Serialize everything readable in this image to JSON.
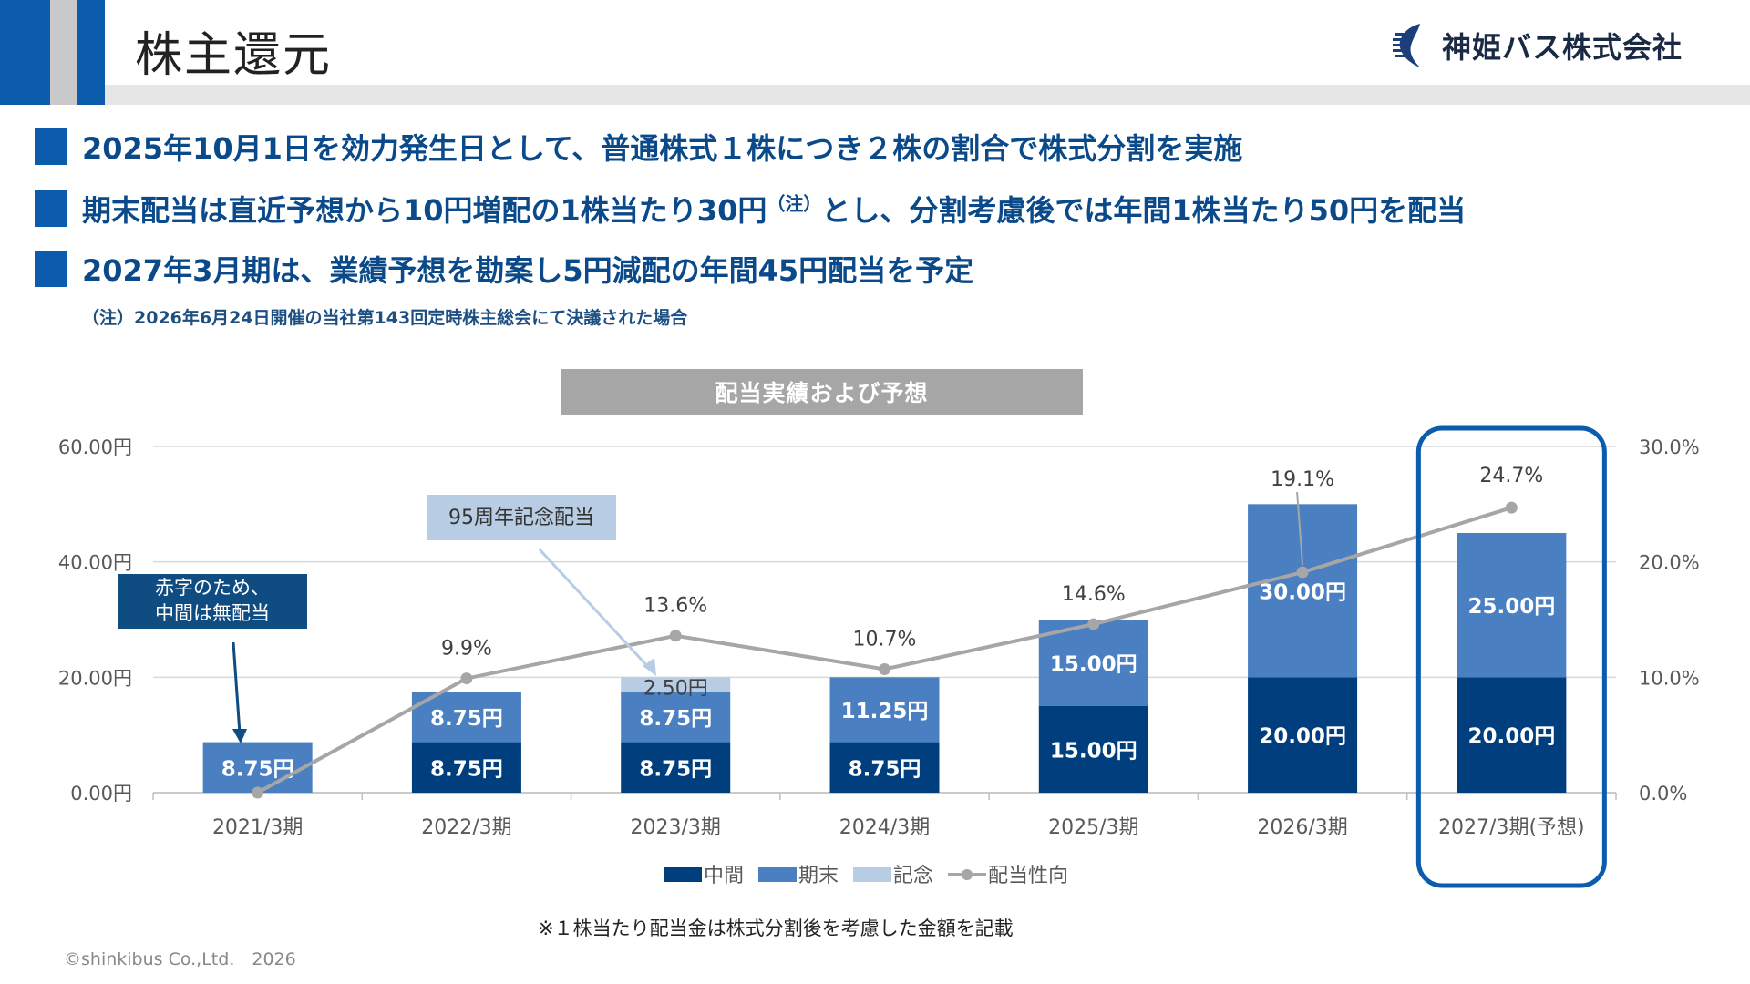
{
  "header": {
    "title": "株主還元",
    "company": "神姫バス株式会社"
  },
  "bullets": [
    {
      "text": "2025年10月1日を効力発生日として、普通株式１株につき２株の割合で株式分割を実施"
    },
    {
      "text": "期末配当は直近予想から10円増配の1株当たり30円",
      "sup": "（注）",
      "text2": "とし、分割考慮後では年間1株当たり50円を配当"
    },
    {
      "text": "2027年3月期は、業績予想を勘案し5円減配の年間45円配当を予定"
    }
  ],
  "note": "（注）2026年6月24日開催の当社第143回定時株主総会にて決議された場合",
  "chart_title": "配当実績および予想",
  "footnote": "※１株当たり配当金は株式分割後を考慮した金額を記載",
  "copyright": "©shinkibus Co.,Ltd.　2026",
  "annotations": {
    "akaji": [
      "赤字のため、",
      "中間は無配当"
    ],
    "kinen": "95周年記念配当"
  },
  "chart_data": {
    "type": "bar",
    "stacked": true,
    "categories": [
      "2021/3期",
      "2022/3期",
      "2023/3期",
      "2024/3期",
      "2025/3期",
      "2026/3期",
      "2027/3期(予想)"
    ],
    "series": [
      {
        "name": "中間",
        "color": "#003e7e",
        "values": [
          0,
          8.75,
          8.75,
          8.75,
          15.0,
          20.0,
          20.0
        ],
        "labels": [
          "",
          "8.75円",
          "8.75円",
          "8.75円",
          "15.00円",
          "20.00円",
          "20.00円"
        ]
      },
      {
        "name": "期末",
        "color": "#4a7fc1",
        "values": [
          8.75,
          8.75,
          8.75,
          11.25,
          15.0,
          30.0,
          25.0
        ],
        "labels": [
          "8.75円",
          "8.75円",
          "8.75円",
          "11.25円",
          "15.00円",
          "30.00円",
          "25.00円"
        ]
      },
      {
        "name": "記念",
        "color": "#b8cce4",
        "values": [
          0,
          0,
          2.5,
          0,
          0,
          0,
          0
        ],
        "labels": [
          "",
          "",
          "2.50円",
          "",
          "",
          "",
          ""
        ]
      }
    ],
    "line": {
      "name": "配当性向",
      "color": "#a6a6a6",
      "values": [
        0.0,
        9.9,
        13.6,
        10.7,
        14.6,
        19.1,
        24.7
      ],
      "labels": [
        "",
        "9.9%",
        "13.6%",
        "10.7%",
        "14.6%",
        "19.1%",
        "24.7%"
      ]
    },
    "y_left": {
      "min": 0,
      "max": 60,
      "ticks": [
        "0.00円",
        "20.00円",
        "40.00円",
        "60.00円"
      ],
      "tick_values": [
        0,
        20,
        40,
        60
      ]
    },
    "y_right": {
      "min": 0,
      "max": 30,
      "ticks": [
        "0.0%",
        "10.0%",
        "20.0%",
        "30.0%"
      ],
      "tick_values": [
        0,
        10,
        20,
        30
      ]
    },
    "grid": true,
    "legend_position": "bottom",
    "highlight_category": "2027/3期(予想)",
    "highlight_color": "#0b5cad"
  }
}
